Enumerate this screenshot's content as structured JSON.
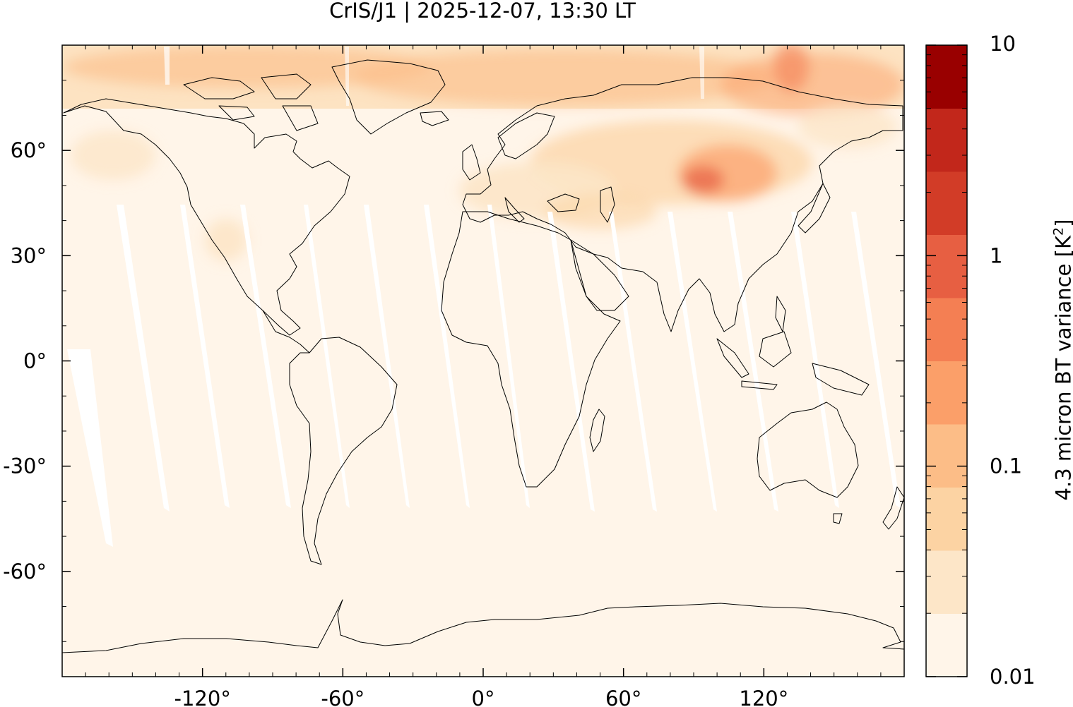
{
  "title": "CrIS/J1 | 2025-12-07, 13:30 LT",
  "map": {
    "projection": "equirectangular",
    "lon_range": [
      -180,
      180
    ],
    "lat_range": [
      -90,
      90
    ],
    "x_ticks": [
      {
        "value": -120,
        "label": "-120°"
      },
      {
        "value": -60,
        "label": "-60°"
      },
      {
        "value": 0,
        "label": "0°"
      },
      {
        "value": 60,
        "label": "60°"
      },
      {
        "value": 120,
        "label": "120°"
      }
    ],
    "y_ticks": [
      {
        "value": 60,
        "label": "60°"
      },
      {
        "value": 30,
        "label": "30°"
      },
      {
        "value": 0,
        "label": "0°"
      },
      {
        "value": -30,
        "label": "-30°"
      },
      {
        "value": -60,
        "label": "-60°"
      }
    ],
    "background_fill": "#fff5e9",
    "swath_gap_color": "#ffffff",
    "coastline_color": "#000000"
  },
  "colorbar": {
    "label_prefix": "4.3 micron BT variance [K",
    "label_sup": "2",
    "label_suffix": "]",
    "scale": "log",
    "range": [
      0.01,
      10
    ],
    "tick_labels": [
      {
        "value": 10,
        "label": "10"
      },
      {
        "value": 1,
        "label": "1"
      },
      {
        "value": 0.1,
        "label": "0.1"
      },
      {
        "value": 0.01,
        "label": "0.01"
      }
    ],
    "colors_bottom_to_top": [
      "#fff5e9",
      "#fde6c8",
      "#fcd3a3",
      "#fcbd87",
      "#fb9f69",
      "#f47f53",
      "#e75f42",
      "#d23c27",
      "#c2271b",
      "#990000"
    ]
  }
}
